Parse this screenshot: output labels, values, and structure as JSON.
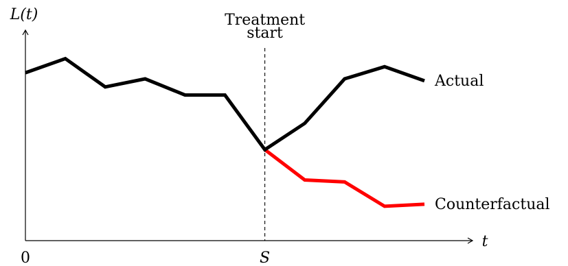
{
  "chart_data": {
    "type": "line",
    "ylabel": "L(t)",
    "xlabel": "t",
    "xlim": [
      0,
      10
    ],
    "ylim": [
      0,
      10
    ],
    "ticks": [
      {
        "x": 0,
        "label": "0",
        "italic": false
      },
      {
        "x": 6,
        "label": "S",
        "italic": true
      }
    ],
    "annotation": {
      "x": 6,
      "line1": "Treatment",
      "line2": "start"
    },
    "grid": false,
    "series": [
      {
        "name": "Actual",
        "color": "#000000",
        "x": [
          0,
          1,
          2,
          3,
          4,
          5,
          6,
          7,
          8,
          9,
          10
        ],
        "y": [
          8.3,
          9.0,
          7.6,
          8.0,
          7.2,
          7.2,
          4.5,
          5.8,
          8.0,
          8.6,
          7.9
        ]
      },
      {
        "name": "Counterfactual",
        "color": "#ff0000",
        "x": [
          6,
          7,
          8,
          9,
          10
        ],
        "y": [
          4.5,
          3.0,
          2.9,
          1.7,
          1.8
        ]
      }
    ]
  }
}
